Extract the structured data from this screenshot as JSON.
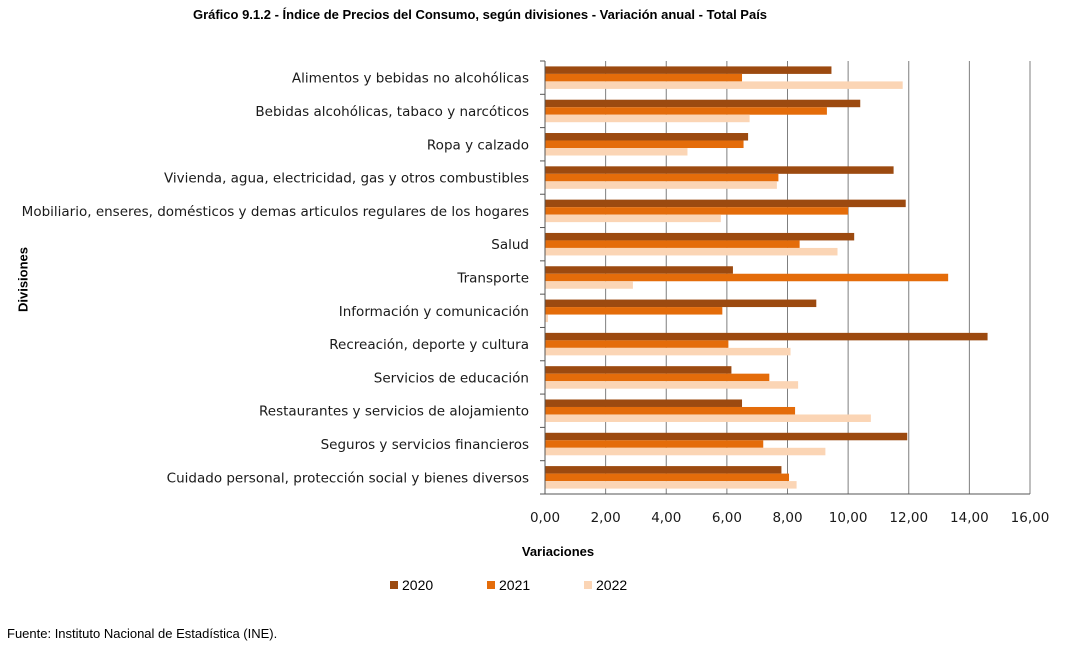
{
  "title": "Gráfico 9.1.2 -  Índice de Precios del Consumo, según divisiones - Variación  anual  - Total País",
  "source": "Fuente: Instituto Nacional de Estadística (INE).",
  "colors": {
    "2020": "#9C4A10",
    "2021": "#E46C0A",
    "2022": "#FBD5B5",
    "grid": "#7f7f7f",
    "axis": "#555555"
  },
  "chart_data": {
    "type": "bar",
    "orientation": "horizontal",
    "title": "Gráfico 9.1.2 -  Índice de Precios del Consumo, según divisiones - Variación  anual  - Total País",
    "xlabel": "Variaciones",
    "ylabel": "Divisiones",
    "xlim": [
      0,
      16
    ],
    "x_ticks": [
      "0,00",
      "2,00",
      "4,00",
      "6,00",
      "8,00",
      "10,00",
      "12,00",
      "14,00",
      "16,00"
    ],
    "x_tick_values": [
      0,
      2,
      4,
      6,
      8,
      10,
      12,
      14,
      16
    ],
    "grid": "vertical",
    "legend_position": "bottom",
    "categories": [
      "Alimentos y bebidas no alcohólicas",
      "Bebidas alcohólicas, tabaco y narcóticos",
      "Ropa y calzado",
      "Vivienda, agua, electricidad, gas y otros combustibles",
      "Mobiliario, enseres, domésticos y demas articulos regulares de los hogares",
      "Salud",
      "Transporte",
      "Información y comunicación",
      "Recreación, deporte y cultura",
      "Servicios de educación",
      "Restaurantes y servicios de alojamiento",
      "Seguros y servicios financieros",
      "Cuidado personal, protección social y bienes diversos"
    ],
    "series": [
      {
        "name": "2020",
        "values": [
          9.45,
          10.4,
          6.7,
          11.5,
          11.9,
          10.2,
          6.2,
          8.95,
          14.6,
          6.15,
          6.5,
          11.95,
          7.8
        ]
      },
      {
        "name": "2021",
        "values": [
          6.5,
          9.3,
          6.55,
          7.7,
          10.0,
          8.4,
          13.3,
          5.85,
          6.05,
          7.4,
          8.25,
          7.2,
          8.05
        ]
      },
      {
        "name": "2022",
        "values": [
          11.8,
          6.75,
          4.7,
          7.65,
          5.8,
          9.65,
          2.9,
          0.1,
          8.1,
          8.35,
          10.75,
          9.25,
          8.3
        ]
      }
    ]
  }
}
